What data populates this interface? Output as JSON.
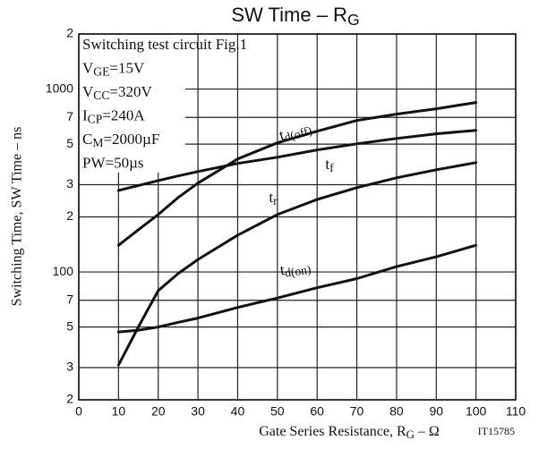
{
  "chart_data": {
    "type": "line",
    "title": [
      {
        "text": "SW Time  –  R"
      },
      {
        "text": "G",
        "sub": true
      }
    ],
    "x_label": [
      {
        "text": "Gate Series Resistance, R"
      },
      {
        "text": "G",
        "sub": true
      },
      {
        "text": "  –  Ω"
      }
    ],
    "y_label": "Switching Time, SW Time  –  ns",
    "code": "IT15785",
    "annotations": [
      [
        {
          "text": "Switching test circuit Fig.1"
        }
      ],
      [
        {
          "text": "V"
        },
        {
          "text": "GE",
          "sub": true
        },
        {
          "text": "=15V"
        }
      ],
      [
        {
          "text": "V"
        },
        {
          "text": "CC",
          "sub": true
        },
        {
          "text": "=320V"
        }
      ],
      [
        {
          "text": "I"
        },
        {
          "text": "CP",
          "sub": true
        },
        {
          "text": "=240A"
        }
      ],
      [
        {
          "text": "C"
        },
        {
          "text": "M",
          "sub": true
        },
        {
          "text": "=2000µF"
        }
      ],
      [
        {
          "text": "PW=50µs"
        }
      ]
    ],
    "x": [
      10,
      15,
      20,
      25,
      30,
      40,
      50,
      60,
      70,
      80,
      90,
      100
    ],
    "series": [
      {
        "label": [
          {
            "text": "t"
          },
          {
            "text": "d(off)",
            "sub": true
          }
        ],
        "color": "#111111",
        "values": [
          140,
          170,
          206,
          255,
          306,
          415,
          508,
          588,
          673,
          729,
          780,
          844
        ]
      },
      {
        "label": [
          {
            "text": "t"
          },
          {
            "text": "f",
            "sub": true
          }
        ],
        "color": "#111111",
        "values": [
          279,
          297,
          316,
          335,
          354,
          392,
          424,
          465,
          502,
          537,
          569,
          595
        ]
      },
      {
        "label": [
          {
            "text": "t"
          },
          {
            "text": "r",
            "sub": true
          }
        ],
        "color": "#111111",
        "values": [
          31,
          50,
          79,
          98,
          117,
          159,
          206,
          249,
          289,
          327,
          362,
          396
        ]
      },
      {
        "label": [
          {
            "text": "t"
          },
          {
            "text": "d(on)",
            "sub": true
          }
        ],
        "color": "#111111",
        "values": [
          47,
          48,
          50,
          53,
          56,
          64,
          72,
          82,
          92,
          107,
          121,
          140
        ]
      }
    ],
    "xlim": [
      0,
      110
    ],
    "xticks": [
      0,
      10,
      20,
      30,
      40,
      50,
      60,
      70,
      80,
      90,
      100,
      110
    ],
    "ylim": [
      20,
      2000
    ],
    "log_y": true,
    "yticks": [
      {
        "value": 20,
        "label": "2"
      },
      {
        "value": 30,
        "label": "3"
      },
      {
        "value": 50,
        "label": "5"
      },
      {
        "value": 70,
        "label": "7"
      },
      100,
      {
        "value": 200,
        "label": "2"
      },
      {
        "value": 300,
        "label": "3"
      },
      {
        "value": 500,
        "label": "5"
      },
      {
        "value": 700,
        "label": "7"
      },
      1000,
      {
        "value": 2000,
        "label": "2"
      }
    ],
    "grid": true
  }
}
